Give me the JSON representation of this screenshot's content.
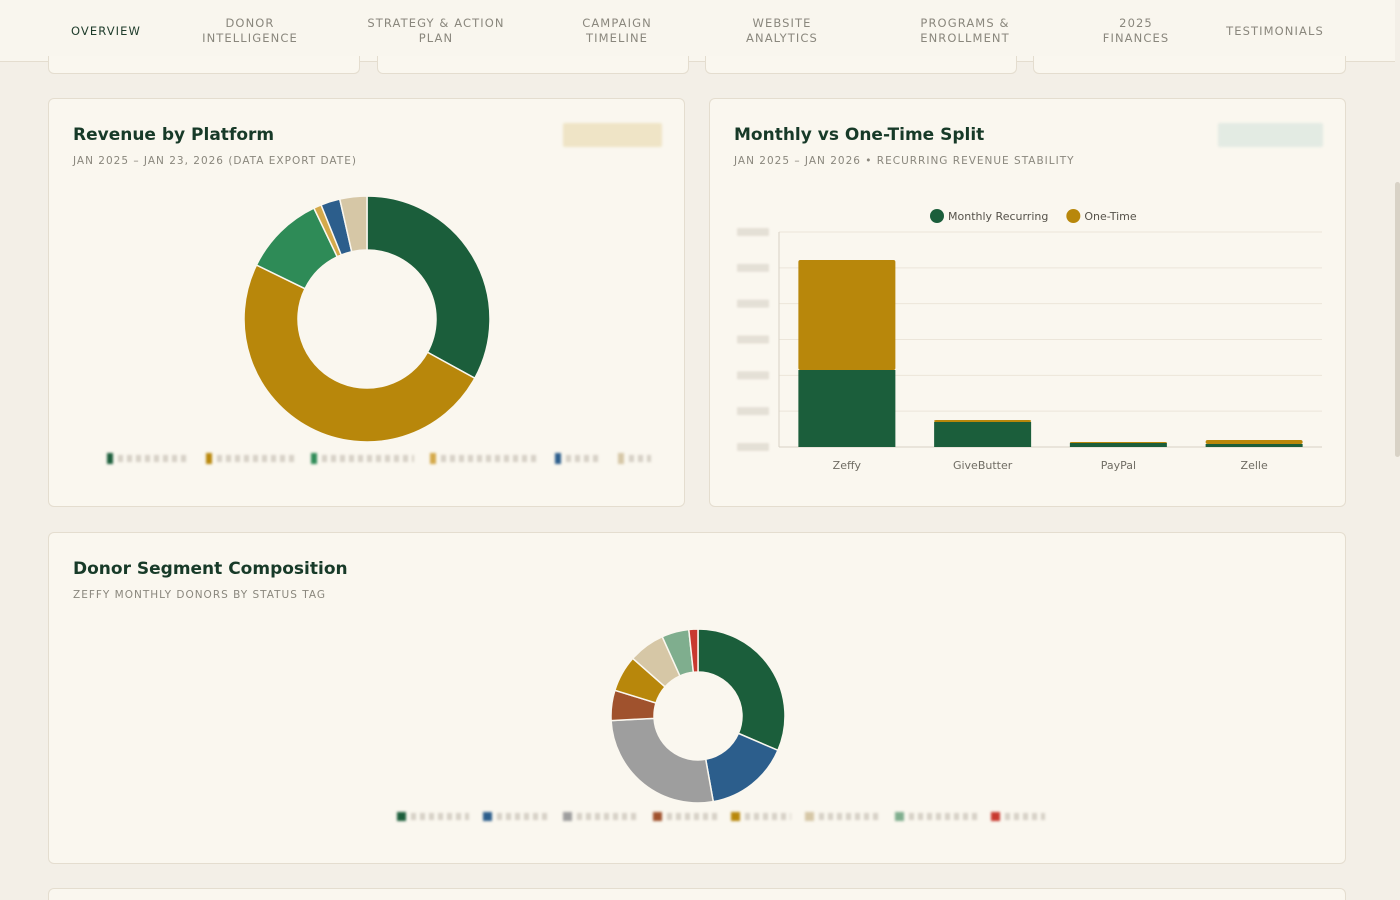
{
  "tabs": [
    {
      "label": "OVERVIEW",
      "active": true
    },
    {
      "label": "DONOR\nINTELLIGENCE"
    },
    {
      "label": "STRATEGY & ACTION\nPLAN"
    },
    {
      "label": "CAMPAIGN\nTIMELINE"
    },
    {
      "label": "WEBSITE\nANALYTICS"
    },
    {
      "label": "PROGRAMS &\nENROLLMENT"
    },
    {
      "label": "2025\nFINANCES"
    },
    {
      "label": "TESTIMONIALS"
    }
  ],
  "colors": {
    "dark_green": "#1b5e3b",
    "gold": "#b8870b",
    "mid_green": "#2e8b57",
    "blue": "#2c5e8c",
    "tan": "#d6c7a6",
    "gray": "#9e9e9e",
    "rust": "#a0522d",
    "sage": "#7fae8e",
    "red": "#c8392f",
    "accent": "#c79a2c"
  },
  "revenue_card": {
    "title": "Revenue by Platform",
    "subtitle": "JAN 2025 – JAN 23, 2026 (DATA EXPORT DATE)",
    "chart_data": {
      "type": "pie",
      "values": [
        32.5,
        48.5,
        10.5,
        1.0,
        2.5,
        3.5
      ],
      "colors": [
        "#1b5e3b",
        "#b8870b",
        "#2e8b57",
        "#d4a94a",
        "#2c5e8c",
        "#d6c7a6"
      ]
    }
  },
  "split_card": {
    "title": "Monthly vs One-Time Split",
    "subtitle": "JAN 2025 – JAN 2026 • RECURRING REVENUE STABILITY",
    "chart_data": {
      "type": "bar",
      "categories": [
        "Zeffy",
        "GiveButter",
        "PayPal",
        "Zelle"
      ],
      "series": [
        {
          "name": "Monthly Recurring",
          "color": "#1b5e3b",
          "values": [
            77,
            25,
            4,
            3
          ]
        },
        {
          "name": "One-Time",
          "color": "#b8870b",
          "values": [
            110,
            2,
            1,
            4
          ]
        }
      ],
      "ylim": [
        0,
        215
      ]
    }
  },
  "segment_card": {
    "title": "Donor Segment Composition",
    "subtitle": "ZEFFY MONTHLY DONORS BY STATUS TAG",
    "chart_data": {
      "type": "pie",
      "values": [
        28,
        14,
        24,
        5,
        6,
        6,
        4.5,
        1.5
      ],
      "colors": [
        "#1b5e3b",
        "#2c5e8c",
        "#9e9e9e",
        "#a0522d",
        "#b8870b",
        "#d6c7a6",
        "#7fae8e",
        "#c8392f"
      ]
    }
  }
}
